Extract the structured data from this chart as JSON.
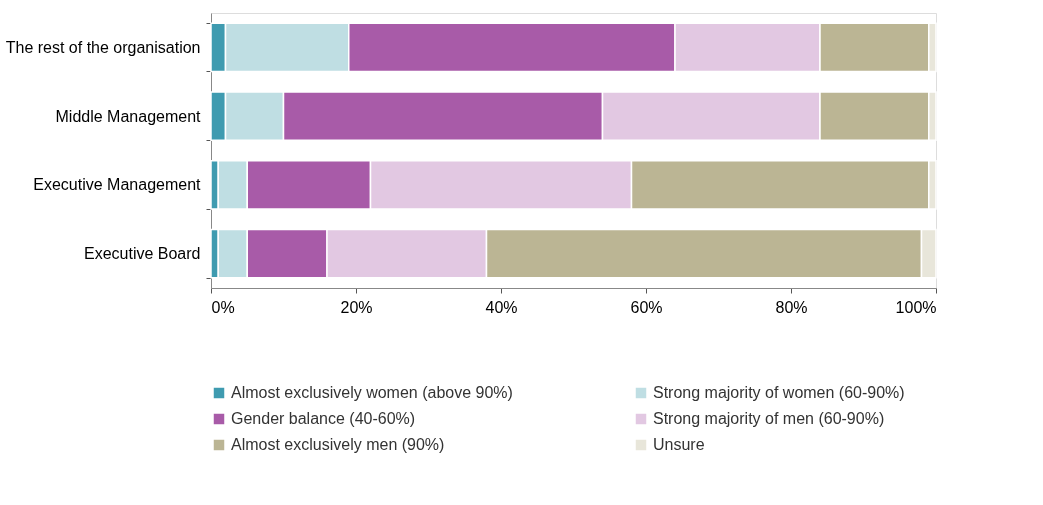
{
  "chart_data": {
    "type": "bar",
    "orientation": "horizontal",
    "stacked": true,
    "categories": [
      "The rest of the organisation",
      "Middle Management",
      "Executive Management",
      "Executive Board"
    ],
    "series": [
      {
        "name": "Almost exclusively women (above 90%)",
        "color": "#3f9bb0",
        "values": [
          2,
          2,
          1,
          1
        ]
      },
      {
        "name": "Strong majority of women (60-90%)",
        "color": "#bfdee3",
        "values": [
          17,
          8,
          4,
          4
        ]
      },
      {
        "name": "Gender balance (40-60%)",
        "color": "#a85ba8",
        "values": [
          45,
          44,
          17,
          11
        ]
      },
      {
        "name": "Strong majority of men (60-90%)",
        "color": "#e2c8e2",
        "values": [
          20,
          30,
          36,
          22
        ]
      },
      {
        "name": "Almost exclusively men (90%)",
        "color": "#bbb594",
        "values": [
          15,
          15,
          41,
          60
        ]
      },
      {
        "name": "Unsure",
        "color": "#e8e6da",
        "values": [
          1,
          1,
          1,
          2
        ]
      }
    ],
    "xlim": [
      0,
      100
    ],
    "xticks": [
      {
        "value": 0,
        "label": "0%"
      },
      {
        "value": 20,
        "label": "20%"
      },
      {
        "value": 40,
        "label": "40%"
      },
      {
        "value": 60,
        "label": "60%"
      },
      {
        "value": 80,
        "label": "80%"
      },
      {
        "value": 100,
        "label": "100%"
      }
    ],
    "grid": false,
    "legend": "bottom"
  }
}
